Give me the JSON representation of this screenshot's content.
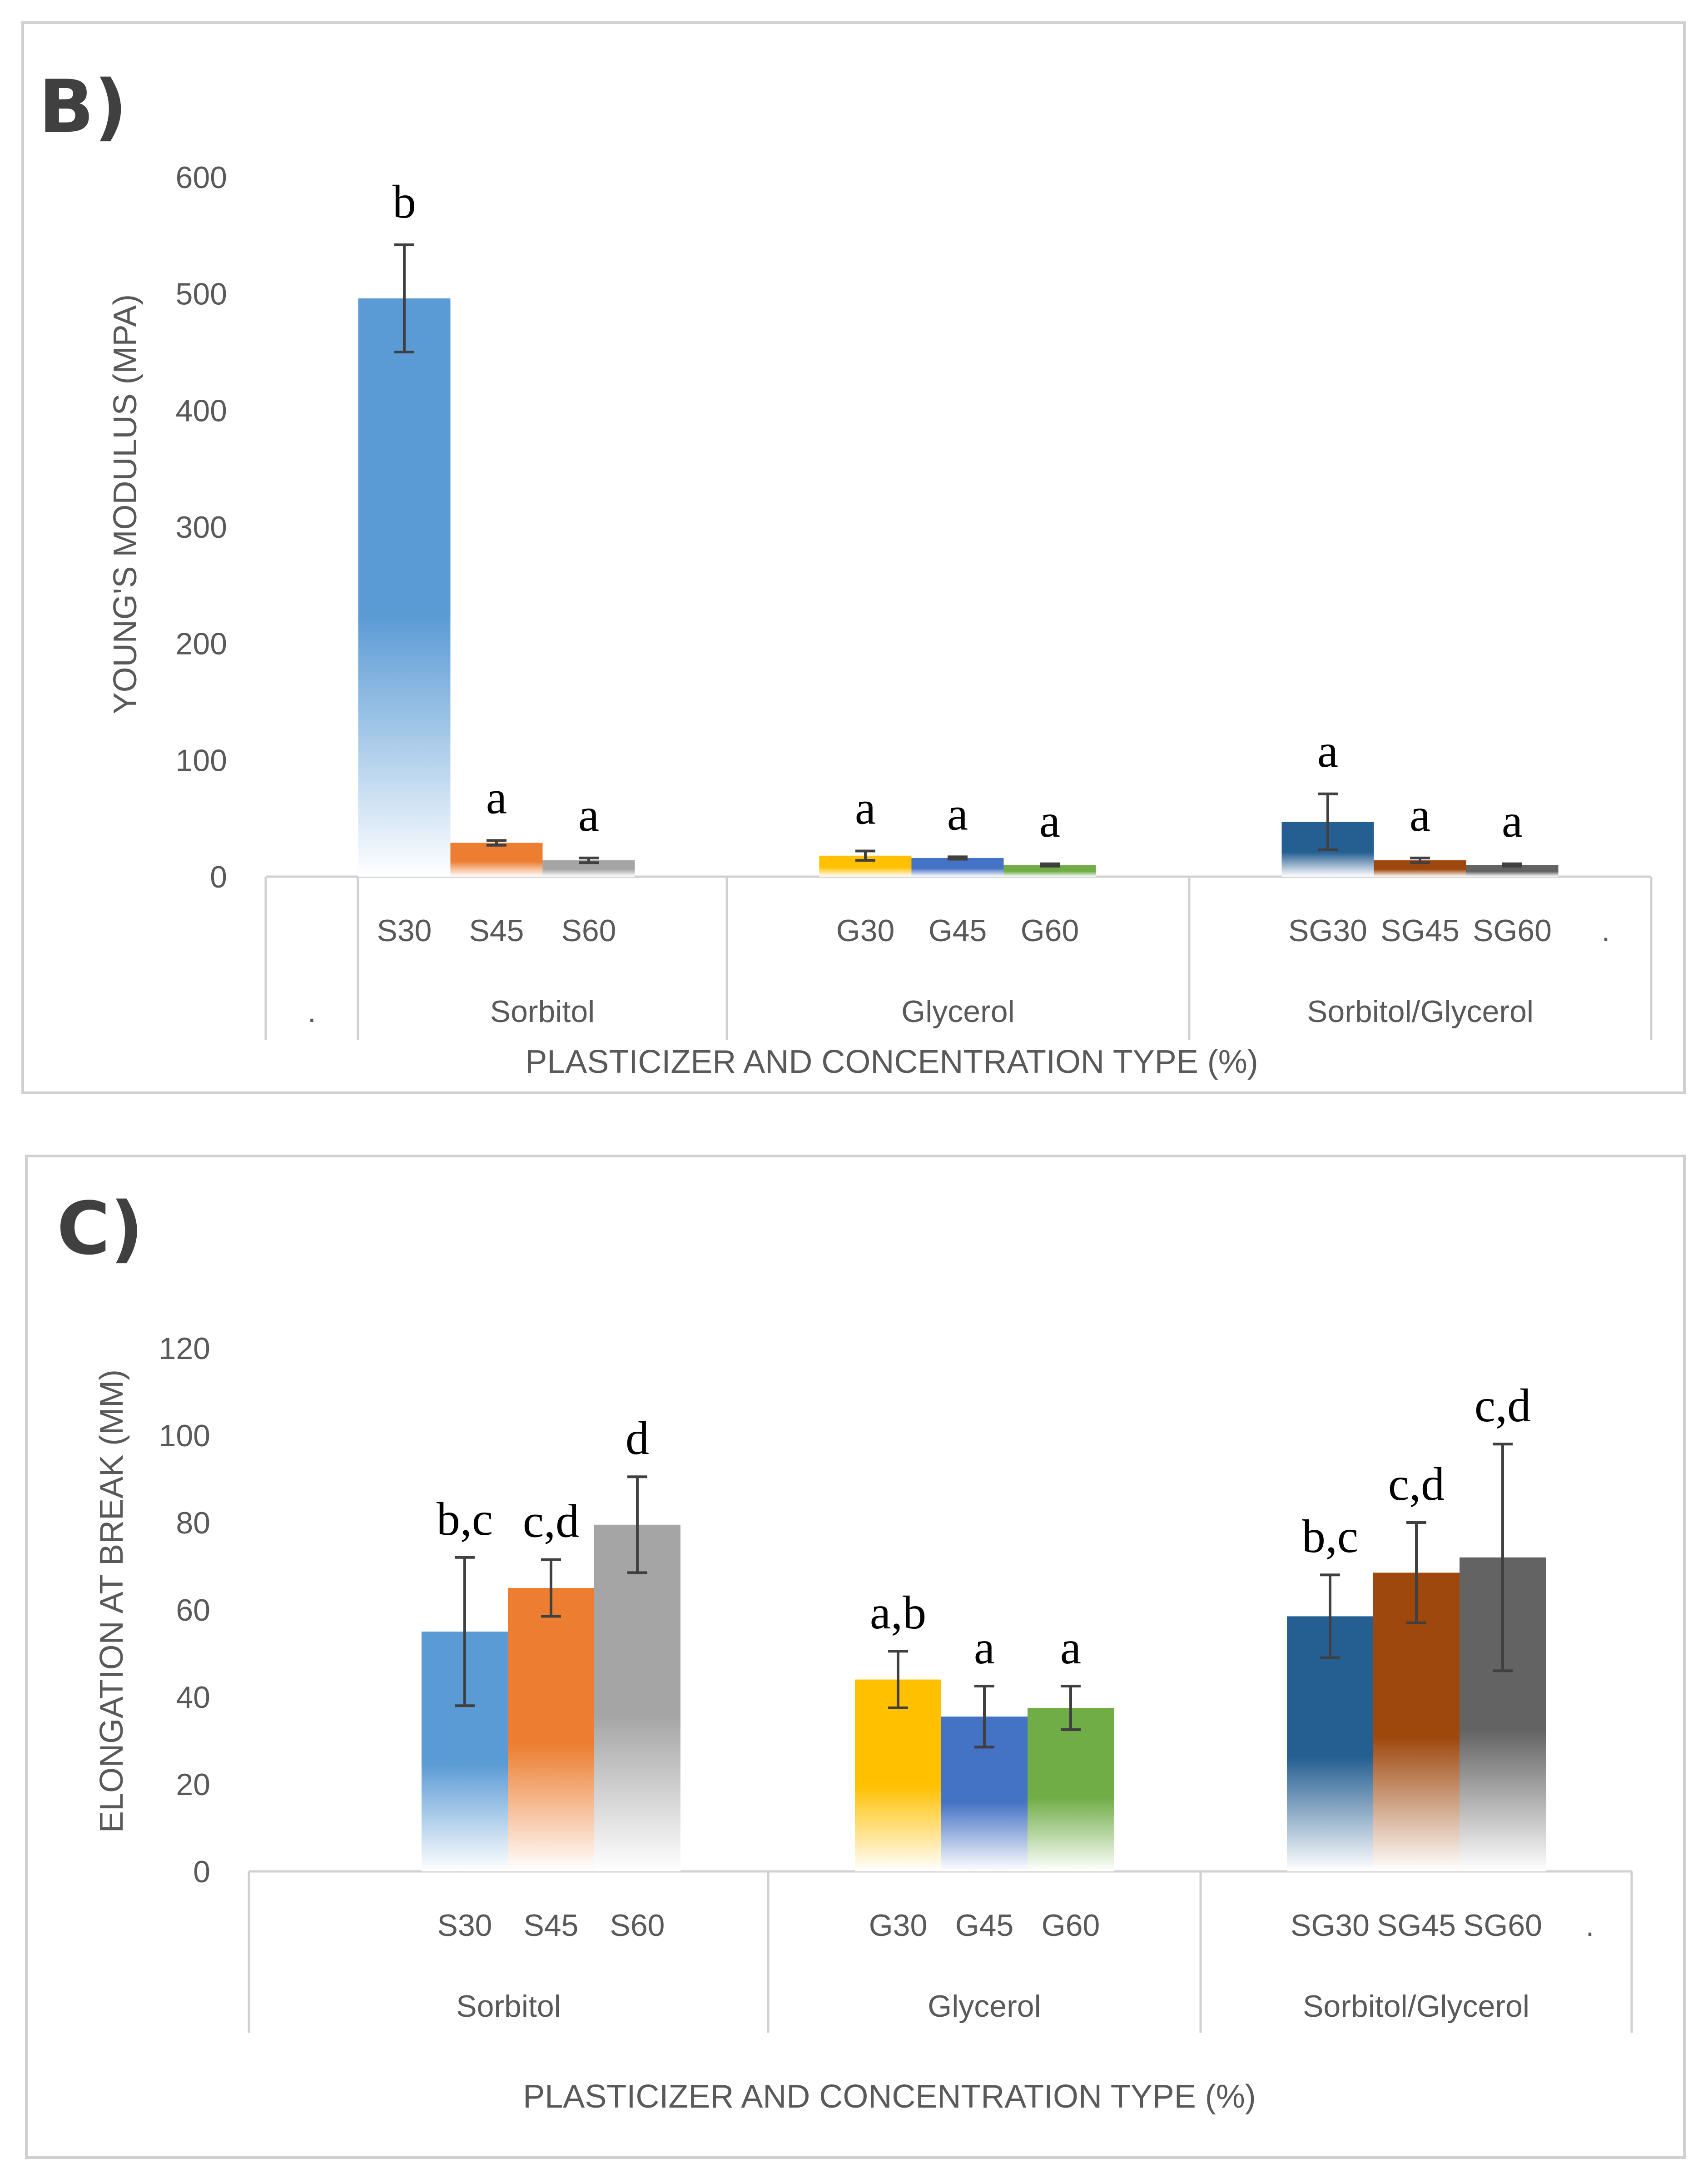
{
  "charts": [
    {
      "panel_label": "B)",
      "ylabel": "YOUNG'S MODULUS (MPA)",
      "xlabel": "PLASTICIZER AND CONCENTRATION TYPE (%)"
    },
    {
      "panel_label": "C)",
      "ylabel": "ELONGATION AT BREAK (MM)",
      "xlabel": "PLASTICIZER AND CONCENTRATION TYPE (%)"
    }
  ],
  "chart_data": [
    {
      "type": "bar",
      "title": "B)",
      "ylabel": "YOUNG'S MODULUS (MPA)",
      "xlabel": "PLASTICIZER AND CONCENTRATION TYPE (%)",
      "ylim": [
        0,
        600
      ],
      "yticks": [
        "0",
        "100",
        "200",
        "300",
        "400",
        "500",
        "600"
      ],
      "groups": [
        {
          "label": ".",
          "bars": []
        },
        {
          "label": "Sorbitol",
          "bars": [
            {
              "label": "S30",
              "value": 496,
              "error": 46,
              "sig": "b",
              "color": "#5b9bd5"
            },
            {
              "label": "S45",
              "value": 29,
              "error": 2,
              "sig": "a",
              "color": "#ed7d31"
            },
            {
              "label": "S60",
              "value": 14,
              "error": 2,
              "sig": "a",
              "color": "#a5a5a5"
            }
          ]
        },
        {
          "label": "Glycerol",
          "bars": [
            {
              "label": "G30",
              "value": 18,
              "error": 4,
              "sig": "a",
              "color": "#ffc000"
            },
            {
              "label": "G45",
              "value": 16,
              "error": 1,
              "sig": "a",
              "color": "#4472c4"
            },
            {
              "label": "G60",
              "value": 10,
              "error": 1,
              "sig": "a",
              "color": "#70ad47"
            }
          ]
        },
        {
          "label": "Sorbitol/Glycerol",
          "bars": [
            {
              "label": "SG30",
              "value": 47,
              "error": 24,
              "sig": "a",
              "color": "#255e91"
            },
            {
              "label": "SG45",
              "value": 14,
              "error": 2,
              "sig": "a",
              "color": "#9e480e"
            },
            {
              "label": "SG60",
              "value": 10,
              "error": 1,
              "sig": "a",
              "color": "#636363"
            }
          ]
        }
      ],
      "trailing_tick": "."
    },
    {
      "type": "bar",
      "title": "C)",
      "ylabel": "ELONGATION AT BREAK (MM)",
      "xlabel": "PLASTICIZER AND CONCENTRATION TYPE (%)",
      "ylim": [
        0,
        120
      ],
      "yticks": [
        "0",
        "20",
        "40",
        "60",
        "80",
        "100",
        "120"
      ],
      "groups": [
        {
          "label": "Sorbitol",
          "bars": [
            {
              "label": "S30",
              "value": 55,
              "error": 17,
              "sig": "b,c",
              "color": "#5b9bd5"
            },
            {
              "label": "S45",
              "value": 65,
              "error": 6.5,
              "sig": "c,d",
              "color": "#ed7d31"
            },
            {
              "label": "S60",
              "value": 79.5,
              "error": 11,
              "sig": "d",
              "color": "#a5a5a5"
            }
          ]
        },
        {
          "label": "Glycerol",
          "bars": [
            {
              "label": "G30",
              "value": 44,
              "error": 6.5,
              "sig": "a,b",
              "color": "#ffc000"
            },
            {
              "label": "G45",
              "value": 35.5,
              "error": 7,
              "sig": "a",
              "color": "#4472c4"
            },
            {
              "label": "G60",
              "value": 37.5,
              "error": 5,
              "sig": "a",
              "color": "#70ad47"
            }
          ]
        },
        {
          "label": "Sorbitol/Glycerol",
          "bars": [
            {
              "label": "SG30",
              "value": 58.5,
              "error": 9.5,
              "sig": "b,c",
              "color": "#255e91"
            },
            {
              "label": "SG45",
              "value": 68.5,
              "error": 11.5,
              "sig": "c,d",
              "color": "#9e480e"
            },
            {
              "label": "SG60",
              "value": 72,
              "error": 26,
              "sig": "c,d",
              "color": "#636363"
            }
          ]
        }
      ],
      "trailing_tick": "."
    }
  ]
}
